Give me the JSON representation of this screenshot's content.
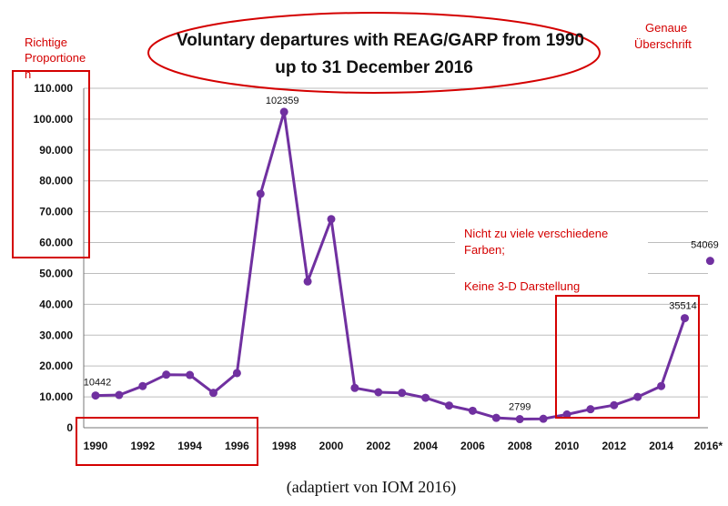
{
  "chart_data": {
    "type": "line",
    "title_line1": "Voluntary departures with REAG/GARP from 1990",
    "title_line2": "up to 31 December 2016",
    "ylim": [
      0,
      110000
    ],
    "y_ticks": [
      0,
      10000,
      20000,
      30000,
      40000,
      50000,
      60000,
      70000,
      80000,
      90000,
      100000,
      110000
    ],
    "y_tick_labels": [
      "0",
      "10.000",
      "20.000",
      "30.000",
      "40.000",
      "50.000",
      "60.000",
      "70.000",
      "80.000",
      "90.000",
      "100.000",
      "110.000"
    ],
    "x_tick_labels": [
      "1990",
      "1992",
      "1994",
      "1996",
      "1998",
      "2000",
      "2002",
      "2004",
      "2006",
      "2008",
      "2010",
      "2012",
      "2014",
      "2016*"
    ],
    "x": [
      1990,
      1991,
      1992,
      1993,
      1994,
      1995,
      1996,
      1997,
      1998,
      1999,
      2000,
      2001,
      2002,
      2003,
      2004,
      2005,
      2006,
      2007,
      2008,
      2009,
      2010,
      2011,
      2012,
      2013,
      2014,
      2015
    ],
    "values": [
      10442,
      10600,
      13500,
      17200,
      17100,
      11300,
      17700,
      75800,
      102359,
      47400,
      67600,
      12900,
      11500,
      11300,
      9700,
      7200,
      5500,
      3200,
      2799,
      2900,
      4300,
      6000,
      7300,
      10000,
      13500,
      35514
    ],
    "separate_point": {
      "x": 2016,
      "value": 54069
    },
    "data_labels": [
      {
        "x": 1990,
        "text": "10442"
      },
      {
        "x": 1998,
        "text": "102359"
      },
      {
        "x": 2008,
        "text": "2799"
      },
      {
        "x": 2015,
        "text": "35514"
      },
      {
        "x": 2016,
        "text": "54069"
      }
    ],
    "line_color": "#7030a0"
  },
  "annotations": {
    "proportion_note": [
      "Richtige",
      "Proportione",
      "n"
    ],
    "heading_note": [
      "Genaue",
      "Überschrift"
    ],
    "colors_note_line1": "Nicht zu viele verschiedene",
    "colors_note_line2": "Farben;",
    "three_d_note": "Keine 3-D Darstellung",
    "caption": "(adaptiert von IOM 2016)",
    "annotation_color": "#d40000"
  }
}
